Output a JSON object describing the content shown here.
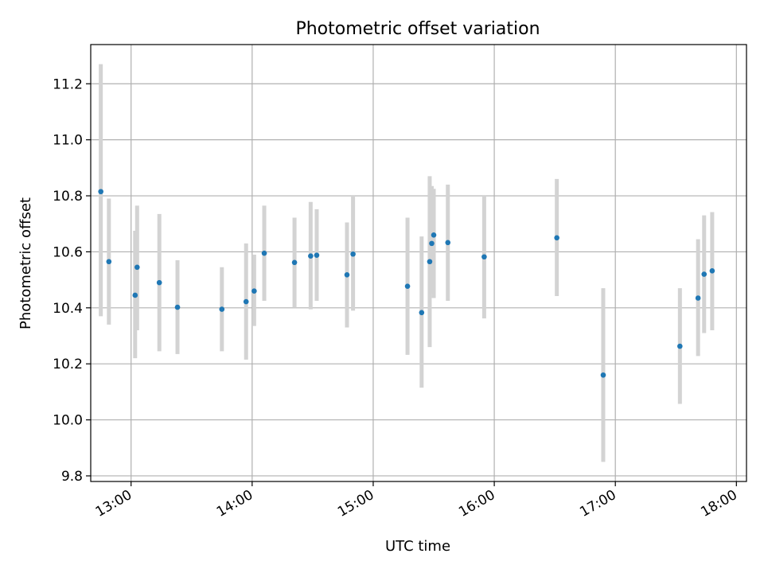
{
  "chart_data": {
    "type": "scatter",
    "title": "Photometric offset variation",
    "xlabel": "UTC time",
    "ylabel": "Photometric offset",
    "grid": true,
    "xlim": [
      "12:40",
      "18:05"
    ],
    "ylim": [
      9.78,
      11.34
    ],
    "xticks": [
      "13:00",
      "14:00",
      "15:00",
      "16:00",
      "17:00",
      "18:00"
    ],
    "yticks": [
      "9.8",
      "10.0",
      "10.2",
      "10.4",
      "10.6",
      "10.8",
      "11.0",
      "11.2"
    ],
    "colors": {
      "point": "#1f77b4",
      "errorbar": "#d3d3d3",
      "grid": "#b0b0b0"
    },
    "points": [
      {
        "x": "12:45",
        "y": 10.815,
        "ylo": 10.37,
        "yhi": 11.27
      },
      {
        "x": "12:49",
        "y": 10.565,
        "ylo": 10.34,
        "yhi": 10.79
      },
      {
        "x": "13:02",
        "y": 10.445,
        "ylo": 10.22,
        "yhi": 10.675
      },
      {
        "x": "13:03",
        "y": 10.545,
        "ylo": 10.32,
        "yhi": 10.765
      },
      {
        "x": "13:14",
        "y": 10.49,
        "ylo": 10.245,
        "yhi": 10.735
      },
      {
        "x": "13:23",
        "y": 10.402,
        "ylo": 10.235,
        "yhi": 10.57
      },
      {
        "x": "13:45",
        "y": 10.395,
        "ylo": 10.245,
        "yhi": 10.545
      },
      {
        "x": "13:57",
        "y": 10.422,
        "ylo": 10.215,
        "yhi": 10.63
      },
      {
        "x": "14:01",
        "y": 10.46,
        "ylo": 10.335,
        "yhi": 10.59
      },
      {
        "x": "14:06",
        "y": 10.595,
        "ylo": 10.425,
        "yhi": 10.765
      },
      {
        "x": "14:21",
        "y": 10.562,
        "ylo": 10.4,
        "yhi": 10.722
      },
      {
        "x": "14:29",
        "y": 10.585,
        "ylo": 10.395,
        "yhi": 10.778
      },
      {
        "x": "14:32",
        "y": 10.588,
        "ylo": 10.425,
        "yhi": 10.752
      },
      {
        "x": "14:47",
        "y": 10.518,
        "ylo": 10.33,
        "yhi": 10.705
      },
      {
        "x": "14:50",
        "y": 10.592,
        "ylo": 10.39,
        "yhi": 10.8
      },
      {
        "x": "15:17",
        "y": 10.477,
        "ylo": 10.232,
        "yhi": 10.722
      },
      {
        "x": "15:24",
        "y": 10.383,
        "ylo": 10.115,
        "yhi": 10.655
      },
      {
        "x": "15:28",
        "y": 10.565,
        "ylo": 10.26,
        "yhi": 10.87
      },
      {
        "x": "15:29",
        "y": 10.63,
        "ylo": 10.45,
        "yhi": 10.835
      },
      {
        "x": "15:30",
        "y": 10.66,
        "ylo": 10.435,
        "yhi": 10.825
      },
      {
        "x": "15:37",
        "y": 10.633,
        "ylo": 10.425,
        "yhi": 10.84
      },
      {
        "x": "15:55",
        "y": 10.582,
        "ylo": 10.362,
        "yhi": 10.8
      },
      {
        "x": "16:31",
        "y": 10.65,
        "ylo": 10.442,
        "yhi": 10.86
      },
      {
        "x": "16:54",
        "y": 10.16,
        "ylo": 9.85,
        "yhi": 10.47
      },
      {
        "x": "17:32",
        "y": 10.263,
        "ylo": 10.057,
        "yhi": 10.47
      },
      {
        "x": "17:41",
        "y": 10.435,
        "ylo": 10.228,
        "yhi": 10.645
      },
      {
        "x": "17:44",
        "y": 10.52,
        "ylo": 10.31,
        "yhi": 10.73
      },
      {
        "x": "17:48",
        "y": 10.532,
        "ylo": 10.32,
        "yhi": 10.742
      }
    ]
  }
}
